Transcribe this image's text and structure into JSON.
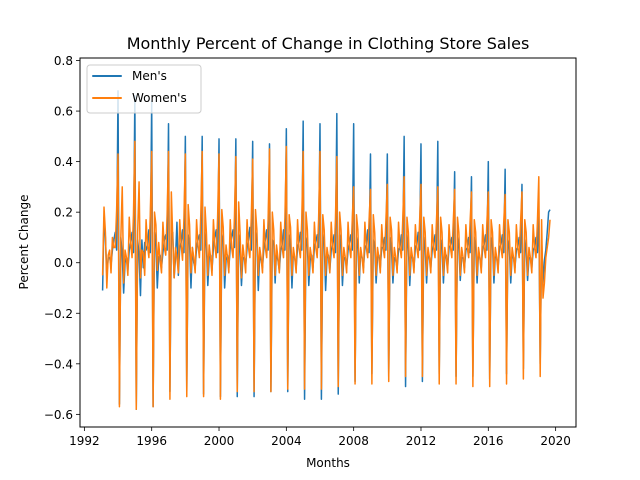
{
  "chart_data": {
    "type": "line",
    "title": "Monthly Percent of Change in Clothing Store Sales",
    "xlabel": "Months",
    "ylabel": "Percent Change",
    "xlim": [
      1991.74,
      2021.21
    ],
    "ylim": [
      -0.65,
      0.81
    ],
    "xticks": [
      1992,
      1996,
      2000,
      2004,
      2008,
      2012,
      2016,
      2020
    ],
    "yticks": [
      -0.6,
      -0.4,
      -0.2,
      0.0,
      0.2,
      0.4,
      0.6,
      0.8
    ],
    "ytick_labels": [
      "−0.6",
      "−0.4",
      "−0.2",
      "0.0",
      "0.2",
      "0.4",
      "0.6",
      "0.8"
    ],
    "x_start": 1993.083,
    "x_step_months": 1,
    "grid": false,
    "legend_position": "top-left",
    "series": [
      {
        "name": "Men's",
        "color": "#1f77b4",
        "values": [
          -0.11,
          0.18,
          0.1,
          -0.05,
          0.02,
          0.02,
          -0.01,
          0.05,
          0.09,
          0.12,
          0.05,
          0.68,
          -0.56,
          0.1,
          0.03,
          -0.12,
          0.0,
          0.02,
          -0.03,
          0.05,
          0.08,
          0.12,
          0.04,
          0.66,
          -0.58,
          0.09,
          0.03,
          -0.13,
          0.09,
          -0.02,
          0.08,
          0.05,
          0.07,
          0.13,
          0.04,
          0.64,
          -0.57,
          0.12,
          0.07,
          -0.1,
          0.02,
          0.03,
          -0.02,
          0.04,
          0.09,
          0.11,
          0.05,
          0.55,
          -0.51,
          0.11,
          0.12,
          -0.06,
          0.02,
          0.16,
          -0.05,
          0.06,
          0.08,
          0.13,
          0.04,
          0.5,
          -0.51,
          0.11,
          0.08,
          -0.1,
          0.06,
          0.0,
          -0.02,
          0.06,
          0.09,
          0.11,
          0.05,
          0.5,
          -0.52,
          0.12,
          0.07,
          -0.09,
          0.02,
          0.03,
          -0.03,
          0.06,
          0.1,
          0.13,
          0.04,
          0.49,
          -0.53,
          0.11,
          0.09,
          -0.1,
          0.01,
          0.03,
          -0.02,
          0.06,
          0.1,
          0.13,
          0.06,
          0.49,
          -0.53,
          0.11,
          0.04,
          -0.09,
          0.02,
          0.02,
          -0.01,
          0.06,
          0.09,
          0.14,
          0.05,
          0.48,
          -0.53,
          0.12,
          0.09,
          -0.11,
          0.03,
          0.01,
          -0.02,
          0.06,
          0.09,
          0.13,
          0.05,
          0.47,
          -0.51,
          0.09,
          0.08,
          -0.08,
          0.05,
          0.01,
          -0.03,
          0.05,
          0.07,
          0.13,
          0.05,
          0.53,
          -0.51,
          0.11,
          0.07,
          -0.1,
          0.04,
          0.02,
          -0.02,
          0.06,
          0.08,
          0.12,
          0.05,
          0.56,
          -0.54,
          0.1,
          0.07,
          -0.09,
          0.01,
          0.03,
          -0.02,
          0.06,
          0.08,
          0.11,
          0.06,
          0.55,
          -0.54,
          0.11,
          0.08,
          -0.11,
          0.02,
          0.03,
          -0.03,
          0.05,
          0.07,
          0.11,
          0.04,
          0.59,
          -0.52,
          0.11,
          0.07,
          -0.09,
          0.02,
          0.02,
          -0.02,
          0.05,
          0.08,
          0.11,
          0.05,
          0.55,
          -0.47,
          0.1,
          0.06,
          -0.08,
          0.04,
          0.02,
          -0.02,
          0.06,
          0.07,
          0.13,
          0.04,
          0.43,
          -0.44,
          0.09,
          0.07,
          -0.08,
          0.02,
          0.03,
          -0.02,
          0.06,
          0.06,
          0.1,
          0.05,
          0.43,
          -0.45,
          0.1,
          0.05,
          -0.08,
          0.02,
          0.01,
          -0.02,
          0.05,
          0.06,
          0.11,
          0.05,
          0.5,
          -0.49,
          0.11,
          0.06,
          -0.09,
          0.03,
          0.02,
          -0.02,
          0.06,
          0.07,
          0.12,
          0.05,
          0.47,
          -0.47,
          0.1,
          0.06,
          -0.08,
          0.04,
          0.02,
          -0.02,
          0.05,
          0.07,
          0.11,
          0.05,
          0.48,
          -0.44,
          0.09,
          0.06,
          -0.08,
          0.03,
          0.03,
          -0.02,
          0.06,
          0.07,
          0.1,
          0.05,
          0.36,
          -0.45,
          0.1,
          0.06,
          -0.07,
          0.02,
          0.02,
          -0.02,
          0.05,
          0.06,
          0.1,
          0.04,
          0.34,
          -0.45,
          0.1,
          0.06,
          -0.08,
          0.04,
          0.02,
          -0.02,
          0.06,
          0.07,
          0.11,
          0.05,
          0.4,
          -0.46,
          0.1,
          0.07,
          -0.08,
          0.03,
          0.02,
          -0.02,
          0.06,
          0.07,
          0.11,
          0.04,
          0.37,
          -0.44,
          0.09,
          0.06,
          -0.08,
          0.03,
          0.02,
          -0.02,
          0.05,
          0.06,
          0.1,
          0.04,
          0.31,
          -0.42,
          0.09,
          0.05,
          -0.07,
          0.02,
          0.02,
          -0.02,
          0.05,
          0.06,
          0.1,
          0.04,
          0.21,
          -0.4,
          0.09,
          -0.08,
          0.01,
          0.05,
          0.12,
          0.2,
          0.21
        ]
      },
      {
        "name": "Women's",
        "color": "#ff7f0e",
        "values": [
          -0.05,
          0.22,
          0.12,
          -0.1,
          0.03,
          0.05,
          -0.04,
          0.1,
          0.06,
          0.06,
          0.21,
          0.43,
          -0.57,
          0.1,
          0.3,
          -0.08,
          0.05,
          0.02,
          -0.05,
          0.18,
          0.08,
          0.02,
          0.19,
          0.48,
          -0.58,
          0.12,
          0.32,
          -0.06,
          0.05,
          0.04,
          -0.05,
          0.17,
          0.07,
          0.02,
          0.19,
          0.44,
          -0.57,
          0.2,
          0.15,
          -0.03,
          0.08,
          0.01,
          -0.04,
          0.16,
          0.06,
          0.03,
          0.19,
          0.44,
          -0.54,
          0.28,
          0.1,
          -0.06,
          0.06,
          0.02,
          -0.04,
          0.17,
          0.07,
          0.01,
          0.18,
          0.43,
          -0.53,
          0.23,
          0.15,
          -0.04,
          0.06,
          0.02,
          -0.04,
          0.17,
          0.07,
          0.02,
          0.19,
          0.44,
          -0.53,
          0.22,
          0.12,
          -0.05,
          0.07,
          0.02,
          -0.05,
          0.17,
          0.07,
          0.02,
          0.18,
          0.43,
          -0.54,
          0.21,
          0.14,
          -0.05,
          0.07,
          0.02,
          -0.04,
          0.17,
          0.06,
          0.02,
          0.18,
          0.42,
          -0.51,
          0.24,
          0.12,
          -0.06,
          0.07,
          0.02,
          -0.04,
          0.17,
          0.06,
          0.02,
          0.18,
          0.41,
          -0.51,
          0.21,
          0.13,
          -0.05,
          0.06,
          0.02,
          -0.04,
          0.17,
          0.06,
          0.02,
          0.17,
          0.45,
          -0.51,
          0.2,
          0.13,
          -0.05,
          0.07,
          0.02,
          -0.04,
          0.16,
          0.06,
          0.02,
          0.18,
          0.46,
          -0.5,
          0.19,
          0.14,
          -0.05,
          0.06,
          0.02,
          -0.04,
          0.17,
          0.06,
          0.02,
          0.17,
          0.44,
          -0.5,
          0.2,
          0.13,
          -0.05,
          0.06,
          0.02,
          -0.04,
          0.16,
          0.06,
          0.02,
          0.17,
          0.44,
          -0.5,
          0.19,
          0.13,
          -0.05,
          0.06,
          0.02,
          -0.04,
          0.16,
          0.06,
          0.02,
          0.17,
          0.42,
          -0.49,
          0.2,
          0.13,
          -0.05,
          0.06,
          0.02,
          -0.04,
          0.16,
          0.06,
          0.02,
          0.17,
          0.3,
          -0.48,
          0.19,
          0.13,
          -0.05,
          0.06,
          0.02,
          -0.04,
          0.16,
          0.06,
          0.02,
          0.17,
          0.29,
          -0.48,
          0.19,
          0.12,
          -0.05,
          0.06,
          0.02,
          -0.04,
          0.15,
          0.06,
          0.02,
          0.17,
          0.31,
          -0.47,
          0.18,
          0.13,
          -0.05,
          0.06,
          0.02,
          -0.04,
          0.16,
          0.06,
          0.02,
          0.17,
          0.34,
          -0.45,
          0.18,
          0.12,
          -0.05,
          0.06,
          0.02,
          -0.04,
          0.15,
          0.06,
          0.02,
          0.16,
          0.31,
          -0.45,
          0.18,
          0.12,
          -0.05,
          0.06,
          0.02,
          -0.04,
          0.15,
          0.06,
          0.02,
          0.16,
          0.3,
          -0.48,
          0.18,
          0.12,
          -0.05,
          0.06,
          0.02,
          -0.04,
          0.15,
          0.06,
          0.02,
          0.16,
          0.29,
          -0.48,
          0.18,
          0.12,
          -0.05,
          0.06,
          0.02,
          -0.04,
          0.15,
          0.06,
          0.02,
          0.16,
          0.28,
          -0.49,
          0.17,
          0.12,
          -0.05,
          0.06,
          0.02,
          -0.04,
          0.15,
          0.06,
          0.02,
          0.16,
          0.28,
          -0.49,
          0.17,
          0.12,
          -0.05,
          0.06,
          0.02,
          -0.04,
          0.15,
          0.06,
          0.02,
          0.16,
          0.27,
          -0.48,
          0.17,
          0.12,
          -0.05,
          0.06,
          0.02,
          -0.04,
          0.15,
          0.06,
          0.02,
          0.16,
          0.28,
          -0.46,
          0.17,
          0.12,
          -0.05,
          0.06,
          0.02,
          -0.04,
          0.15,
          0.06,
          0.02,
          0.16,
          0.34,
          -0.45,
          0.17,
          -0.14,
          -0.08,
          0.02,
          0.06,
          0.1,
          0.17
        ]
      }
    ]
  }
}
